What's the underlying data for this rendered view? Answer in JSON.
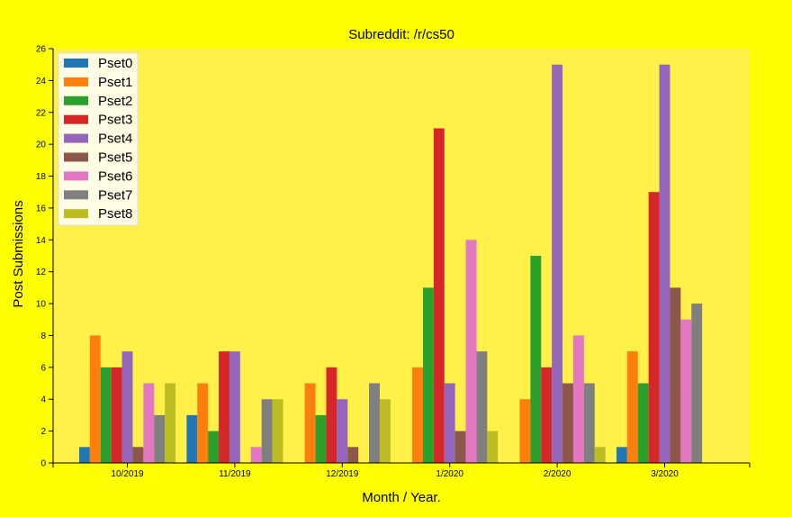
{
  "colors": {
    "page_background": "#ffff00",
    "plot_background": "#fff04a",
    "legend_background": "#ffffff"
  },
  "chart_data": {
    "type": "bar",
    "title": "Subreddit: /r/cs50",
    "xlabel": "Month / Year.",
    "ylabel": "Post Submissions",
    "categories": [
      "10/2019",
      "11/2019",
      "12/2019",
      "1/2020",
      "2/2020",
      "3/2020"
    ],
    "ylim": [
      0,
      26
    ],
    "yticks": [
      0,
      2,
      4,
      6,
      8,
      10,
      12,
      14,
      16,
      18,
      20,
      22,
      24,
      26
    ],
    "grid": false,
    "legend_position": "top-left",
    "series": [
      {
        "name": "Pset0",
        "color": "#1f77b4",
        "values": [
          1,
          3,
          0,
          0,
          0,
          1
        ]
      },
      {
        "name": "Pset1",
        "color": "#ff7f0e",
        "values": [
          8,
          5,
          5,
          6,
          4,
          7
        ]
      },
      {
        "name": "Pset2",
        "color": "#2ca02c",
        "values": [
          6,
          2,
          3,
          11,
          13,
          5
        ]
      },
      {
        "name": "Pset3",
        "color": "#d62728",
        "values": [
          6,
          7,
          6,
          21,
          6,
          17
        ]
      },
      {
        "name": "Pset4",
        "color": "#9467bd",
        "values": [
          7,
          7,
          4,
          5,
          25,
          25
        ]
      },
      {
        "name": "Pset5",
        "color": "#8c564b",
        "values": [
          1,
          0,
          1,
          2,
          5,
          11
        ]
      },
      {
        "name": "Pset6",
        "color": "#e377c2",
        "values": [
          5,
          1,
          0,
          14,
          8,
          9
        ]
      },
      {
        "name": "Pset7",
        "color": "#7f7f7f",
        "values": [
          3,
          4,
          5,
          7,
          5,
          10
        ]
      },
      {
        "name": "Pset8",
        "color": "#bcbd22",
        "values": [
          5,
          4,
          4,
          2,
          1,
          0
        ]
      }
    ]
  }
}
